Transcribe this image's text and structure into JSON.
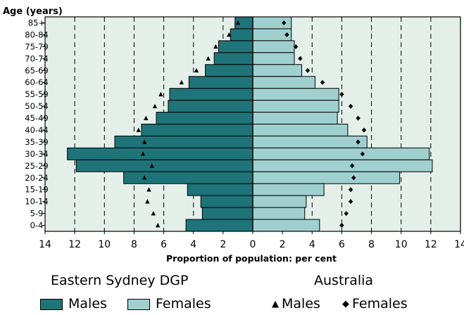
{
  "chart_data": {
    "type": "bar",
    "orientation": "horizontal-population-pyramid",
    "ylabel": "Age (years)",
    "xlabel": "Proportion of population: per cent",
    "xlim": [
      -14,
      14
    ],
    "x_ticks": [
      "14",
      "12",
      "10",
      "8",
      "6",
      "4",
      "2",
      "0",
      "2",
      "4",
      "6",
      "8",
      "10",
      "12",
      "14"
    ],
    "grid": "vertical dashed",
    "categories": [
      "85+",
      "80-84",
      "75-79",
      "70-74",
      "65-69",
      "60-64",
      "55-59",
      "50-54",
      "45-49",
      "40-44",
      "35-39",
      "30-34",
      "25-29",
      "20-24",
      "15-19",
      "10-14",
      "5-9",
      "0-4"
    ],
    "series": [
      {
        "name": "Males",
        "group": "Eastern Sydney DGP",
        "side": "left",
        "values": [
          1.2,
          1.5,
          2.3,
          2.6,
          3.2,
          4.3,
          5.6,
          5.7,
          6.5,
          7.5,
          9.3,
          12.5,
          11.9,
          8.7,
          4.4,
          3.5,
          3.4,
          4.5
        ]
      },
      {
        "name": "Females",
        "group": "Eastern Sydney DGP",
        "side": "right",
        "values": [
          2.6,
          2.6,
          2.8,
          2.8,
          3.3,
          4.2,
          5.8,
          5.8,
          5.7,
          6.4,
          7.7,
          11.9,
          12.1,
          9.9,
          4.8,
          3.6,
          3.5,
          4.5
        ]
      },
      {
        "name": "Males",
        "group": "Australia",
        "side": "left",
        "marker": "triangle",
        "values": [
          1.0,
          1.6,
          2.5,
          3.0,
          3.8,
          4.8,
          6.2,
          6.6,
          7.2,
          7.7,
          7.3,
          7.4,
          6.8,
          7.3,
          7.0,
          7.1,
          6.7,
          6.4
        ]
      },
      {
        "name": "Females",
        "group": "Australia",
        "side": "right",
        "marker": "diamond",
        "values": [
          2.1,
          2.3,
          2.9,
          3.2,
          3.7,
          4.7,
          6.0,
          6.6,
          7.1,
          7.5,
          7.1,
          7.4,
          6.7,
          6.8,
          6.6,
          6.6,
          6.3,
          6.0
        ]
      }
    ]
  },
  "legend": {
    "group1_title": "Eastern Sydney DGP",
    "group2_title": "Australia",
    "males_label": "Males",
    "females_label": "Females",
    "triangle_symbol": "▲",
    "diamond_symbol": "◆"
  },
  "colors": {
    "plot_bg": "#e4efea",
    "male_fill": "#1e7478",
    "female_fill": "#9fd0cf",
    "edge": "#000000"
  }
}
